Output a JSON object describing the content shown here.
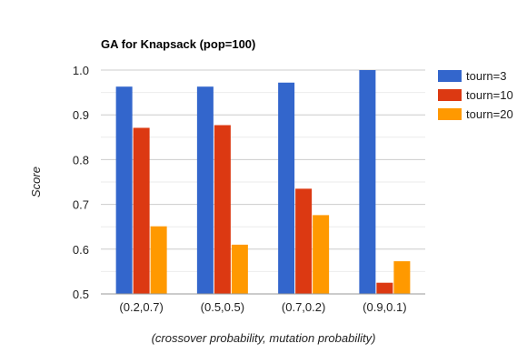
{
  "chart_data": {
    "type": "bar",
    "title": "GA for Knapsack (pop=100)",
    "xlabel": "(crossover probability, mutation probability)",
    "ylabel": "Score",
    "categories": [
      "(0.2,0.7)",
      "(0.5,0.5)",
      "(0.7,0.2)",
      "(0.9,0.1)"
    ],
    "ylim": [
      0.5,
      1.0
    ],
    "yticks": [
      0.5,
      0.6,
      0.7,
      0.8,
      0.9,
      1.0
    ],
    "ytick_labels": [
      "0.5",
      "0.6",
      "0.7",
      "0.8",
      "0.9",
      "1.0"
    ],
    "grid": true,
    "legend_position": "right",
    "series": [
      {
        "name": "tourn=3",
        "color": "#3366cc",
        "values": [
          0.963,
          0.963,
          0.972,
          1.0
        ]
      },
      {
        "name": "tourn=10",
        "color": "#dc3912",
        "values": [
          0.871,
          0.877,
          0.735,
          0.525
        ]
      },
      {
        "name": "tourn=20",
        "color": "#ff9900",
        "values": [
          0.651,
          0.61,
          0.676,
          0.573
        ]
      }
    ]
  }
}
